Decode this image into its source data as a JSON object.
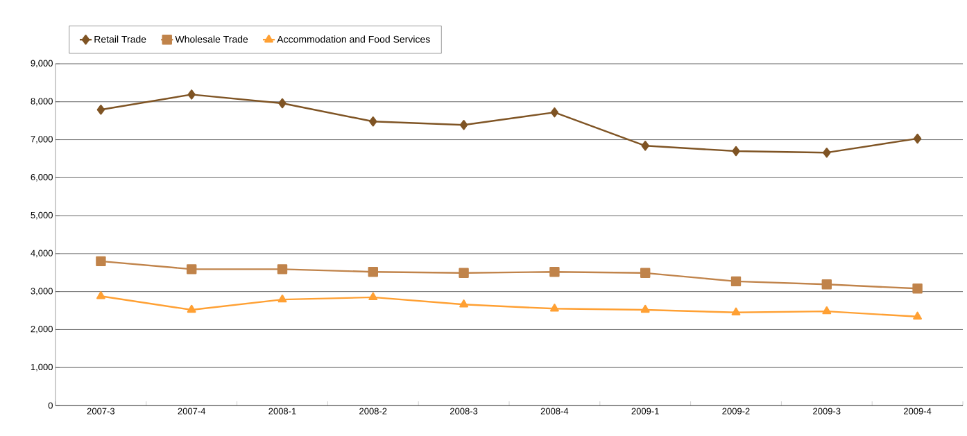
{
  "chart_data": {
    "type": "line",
    "categories": [
      "2007-3",
      "2007-4",
      "2008-1",
      "2008-2",
      "2008-3",
      "2008-4",
      "2009-1",
      "2009-2",
      "2009-3",
      "2009-4"
    ],
    "series": [
      {
        "name": "Retail Trade",
        "color": "#7f5424",
        "marker": "diamond",
        "values": [
          7790,
          8190,
          7960,
          7480,
          7390,
          7720,
          6840,
          6700,
          6660,
          7030
        ]
      },
      {
        "name": "Wholesale Trade",
        "color": "#c0834a",
        "marker": "square",
        "values": [
          3800,
          3590,
          3590,
          3520,
          3490,
          3520,
          3490,
          3270,
          3190,
          3080
        ]
      },
      {
        "name": "Accommodation and Food Services",
        "color": "#ffa033",
        "marker": "triangle",
        "values": [
          2880,
          2520,
          2790,
          2850,
          2660,
          2550,
          2520,
          2450,
          2480,
          2340
        ]
      }
    ],
    "ylim": [
      0,
      9000
    ],
    "yticks": [
      {
        "value": 0,
        "label": "0"
      },
      {
        "value": 1000,
        "label": "1,000"
      },
      {
        "value": 2000,
        "label": "2,000"
      },
      {
        "value": 3000,
        "label": "3,000"
      },
      {
        "value": 4000,
        "label": "4,000"
      },
      {
        "value": 5000,
        "label": "5,000"
      },
      {
        "value": 6000,
        "label": "6,000"
      },
      {
        "value": 7000,
        "label": "7,000"
      },
      {
        "value": 8000,
        "label": "8,000"
      },
      {
        "value": 9000,
        "label": "9,000"
      }
    ],
    "grid": "y",
    "legend": "top",
    "line_style": "solid"
  }
}
